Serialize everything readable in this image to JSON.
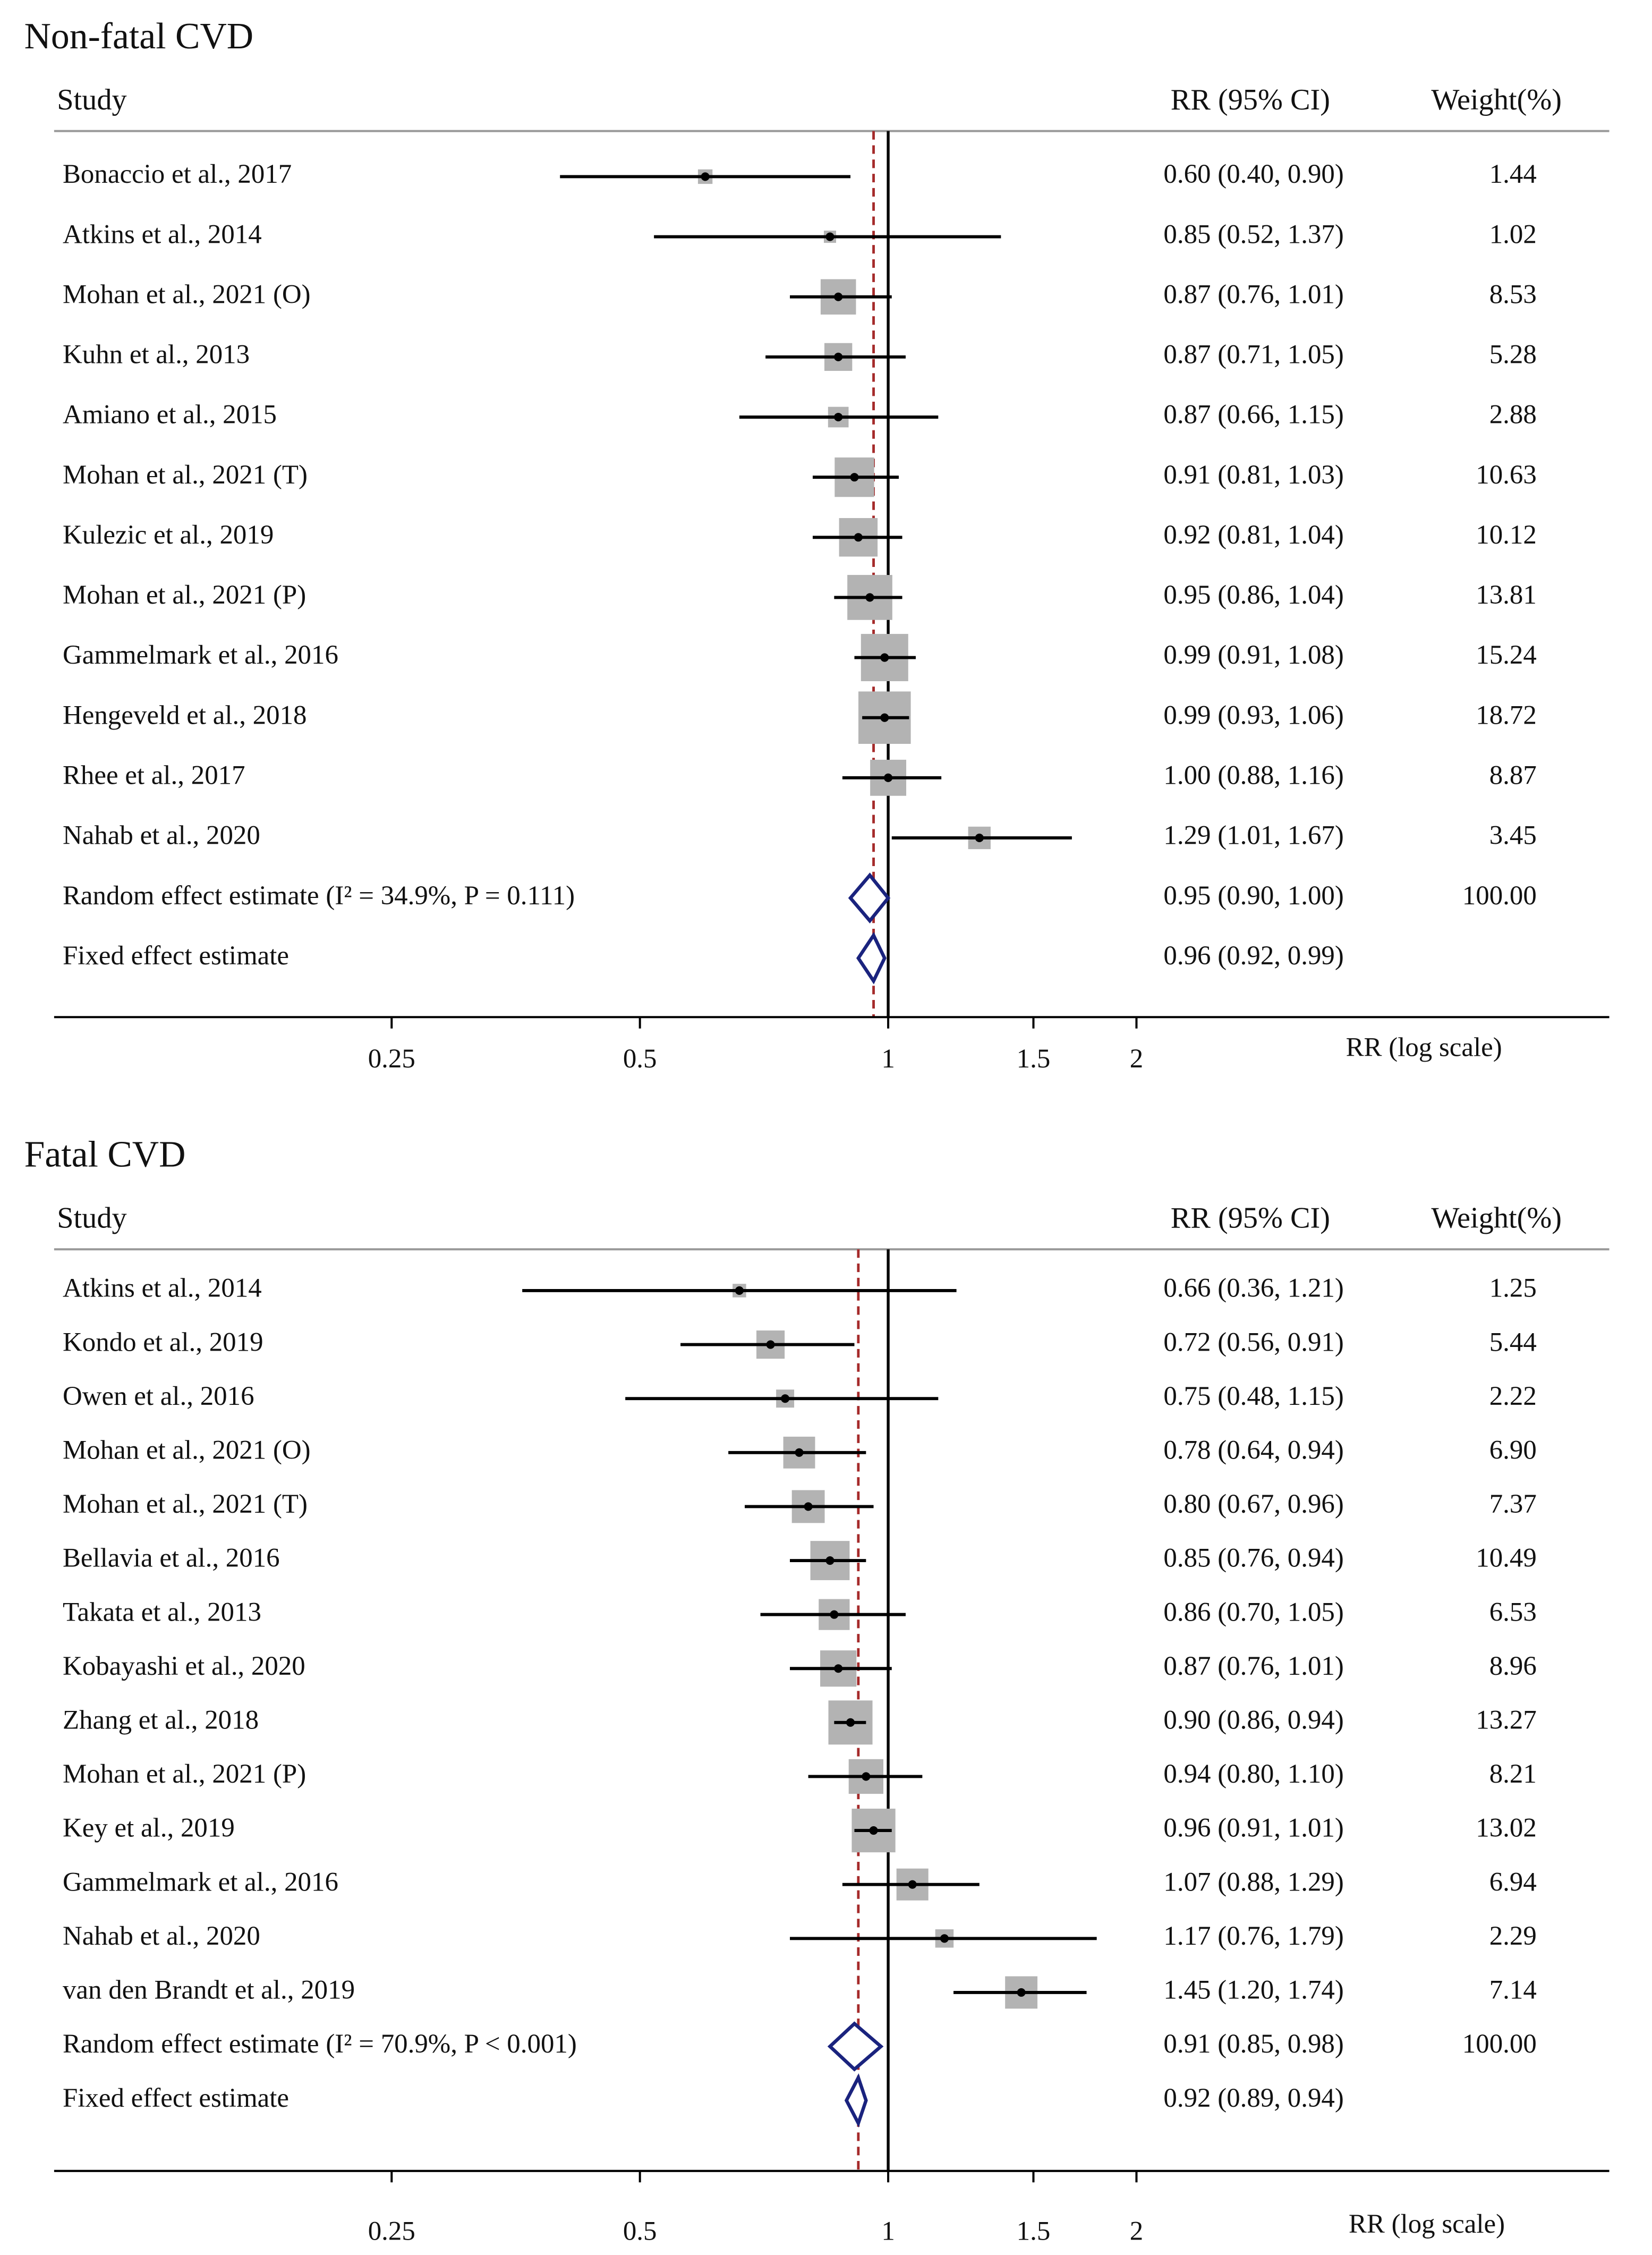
{
  "chart_data": [
    {
      "type": "forest",
      "title": "Non-fatal CVD",
      "columns": [
        "Study",
        "RR (95% CI)",
        "Weight(%)"
      ],
      "studies": [
        "Bonaccio et al., 2017",
        "Atkins et al., 2014",
        "Mohan et al., 2021 (O)",
        "Kuhn et al., 2013",
        "Amiano et al., 2015",
        "Mohan et al., 2021 (T)",
        "Kulezic et al., 2019",
        "Mohan et al., 2021 (P)",
        "Gammelmark et al., 2016",
        "Hengeveld et al., 2018",
        "Rhee et al., 2017",
        "Nahab et al., 2020"
      ],
      "values": [
        0.6,
        0.85,
        0.87,
        0.87,
        0.87,
        0.91,
        0.92,
        0.95,
        0.99,
        0.99,
        1.0,
        1.29
      ],
      "lower": [
        0.4,
        0.52,
        0.76,
        0.71,
        0.66,
        0.81,
        0.81,
        0.86,
        0.91,
        0.93,
        0.88,
        1.01
      ],
      "upper": [
        0.9,
        1.37,
        1.01,
        1.05,
        1.15,
        1.03,
        1.04,
        1.04,
        1.08,
        1.06,
        1.16,
        1.67
      ],
      "value_labels": [
        "0.60 (0.40, 0.90)",
        "0.85 (0.52, 1.37)",
        "0.87 (0.76, 1.01)",
        "0.87 (0.71, 1.05)",
        "0.87 (0.66, 1.15)",
        "0.91 (0.81, 1.03)",
        "0.92 (0.81, 1.04)",
        "0.95 (0.86, 1.04)",
        "0.99 (0.91, 1.08)",
        "0.99 (0.93, 1.06)",
        "1.00 (0.88, 1.16)",
        "1.29 (1.01, 1.67)"
      ],
      "weights": [
        1.44,
        1.02,
        8.53,
        5.28,
        2.88,
        10.63,
        10.12,
        13.81,
        15.24,
        18.72,
        8.87,
        3.45
      ],
      "weight_labels": [
        "1.44",
        "1.02",
        "8.53",
        "5.28",
        "2.88",
        "10.63",
        "10.12",
        "13.81",
        "15.24",
        "18.72",
        "8.87",
        "3.45"
      ],
      "pooled": [
        {
          "name": "Random effect estimate (I² = 34.9%, P = 0.111)",
          "value": 0.95,
          "lower": 0.9,
          "upper": 1.0,
          "value_label": "0.95 (0.90, 1.00)",
          "weight": 100,
          "weight_label": "100.00"
        },
        {
          "name": "Fixed effect estimate",
          "value": 0.96,
          "lower": 0.92,
          "upper": 0.99,
          "value_label": "0.96 (0.92, 0.99)"
        }
      ],
      "xlim": [
        0.25,
        2
      ],
      "log_scale": true,
      "xticks": [
        0.25,
        0.5,
        1,
        1.5,
        2
      ],
      "xlabel": "RR (log scale)",
      "reference": 1
    },
    {
      "type": "forest",
      "title": "Fatal CVD",
      "columns": [
        "Study",
        "RR (95% CI)",
        "Weight(%)"
      ],
      "studies": [
        "Atkins et al., 2014",
        "Kondo et al., 2019",
        "Owen et al., 2016",
        "Mohan et al., 2021 (O)",
        "Mohan et al., 2021 (T)",
        "Bellavia et al., 2016",
        "Takata et al., 2013",
        "Kobayashi et al., 2020",
        "Zhang et al., 2018",
        "Mohan et al., 2021 (P)",
        "Key et al., 2019",
        "Gammelmark et al., 2016",
        "Nahab et al., 2020",
        "van den Brandt et al., 2019"
      ],
      "values": [
        0.66,
        0.72,
        0.75,
        0.78,
        0.8,
        0.85,
        0.86,
        0.87,
        0.9,
        0.94,
        0.96,
        1.07,
        1.17,
        1.45
      ],
      "lower": [
        0.36,
        0.56,
        0.48,
        0.64,
        0.67,
        0.76,
        0.7,
        0.76,
        0.86,
        0.8,
        0.91,
        0.88,
        0.76,
        1.2
      ],
      "upper": [
        1.21,
        0.91,
        1.15,
        0.94,
        0.96,
        0.94,
        1.05,
        1.01,
        0.94,
        1.1,
        1.01,
        1.29,
        1.79,
        1.74
      ],
      "value_labels": [
        "0.66 (0.36, 1.21)",
        "0.72 (0.56, 0.91)",
        "0.75 (0.48, 1.15)",
        "0.78 (0.64, 0.94)",
        "0.80 (0.67, 0.96)",
        "0.85 (0.76, 0.94)",
        "0.86 (0.70, 1.05)",
        "0.87 (0.76, 1.01)",
        "0.90 (0.86, 0.94)",
        "0.94 (0.80, 1.10)",
        "0.96 (0.91, 1.01)",
        "1.07 (0.88, 1.29)",
        "1.17 (0.76, 1.79)",
        "1.45 (1.20, 1.74)"
      ],
      "weights": [
        1.25,
        5.44,
        2.22,
        6.9,
        7.37,
        10.49,
        6.53,
        8.96,
        13.27,
        8.21,
        13.02,
        6.94,
        2.29,
        7.14
      ],
      "weight_labels": [
        "1.25",
        "5.44",
        "2.22",
        "6.90",
        "7.37",
        "10.49",
        "6.53",
        "8.96",
        "13.27",
        "8.21",
        "13.02",
        "6.94",
        "2.29",
        "7.14"
      ],
      "pooled": [
        {
          "name": "Random effect estimate (I² = 70.9%, P < 0.001)",
          "value": 0.91,
          "lower": 0.85,
          "upper": 0.98,
          "value_label": "0.91 (0.85, 0.98)",
          "weight": 100,
          "weight_label": "100.00"
        },
        {
          "name": "Fixed effect estimate",
          "value": 0.92,
          "lower": 0.89,
          "upper": 0.94,
          "value_label": "0.92 (0.89, 0.94)"
        }
      ],
      "xlim": [
        0.25,
        2
      ],
      "log_scale": true,
      "xticks": [
        0.25,
        0.5,
        1,
        1.5,
        2
      ],
      "xlabel": "RR (log scale)",
      "reference": 1
    }
  ]
}
